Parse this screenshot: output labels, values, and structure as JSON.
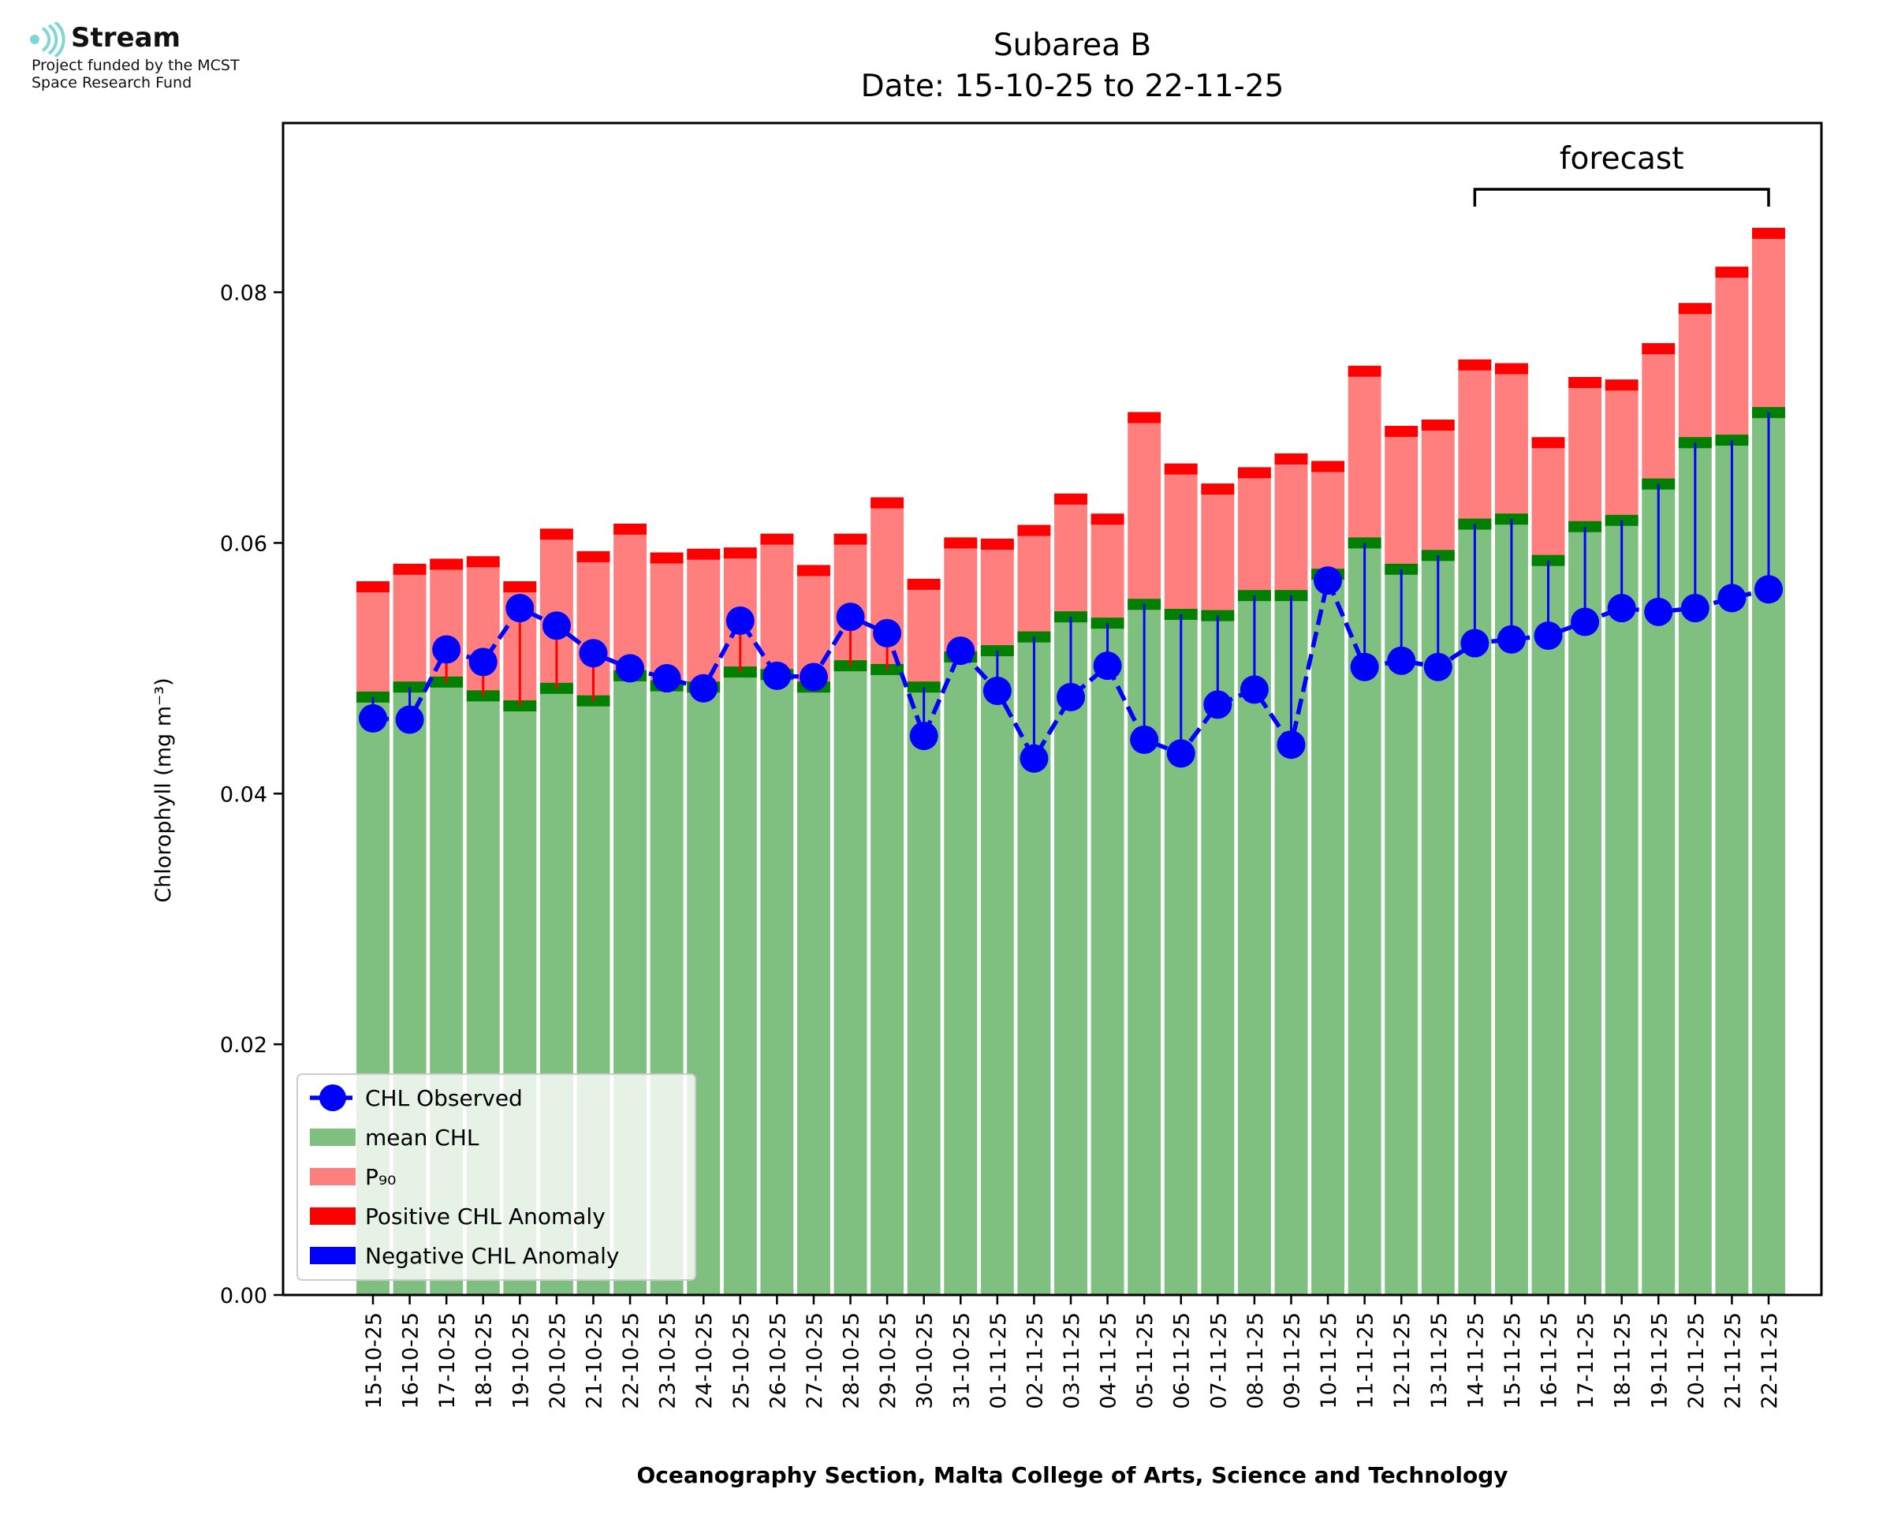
{
  "logo": {
    "brand": "Stream",
    "line1": "Project funded by the MCST",
    "line2": "Space Research Fund"
  },
  "chart_data": {
    "type": "bar",
    "title": "Subarea B",
    "subtitle": "Date: 15-10-25 to 22-11-25",
    "xlabel": "Oceanography Section, Malta College of Arts, Science and Technology",
    "ylabel": "Chlorophyll (mg m⁻³)",
    "ylim": [
      0,
      0.0935
    ],
    "yticks": [
      "0.00",
      "0.02",
      "0.04",
      "0.06",
      "0.08"
    ],
    "annotation": "forecast",
    "forecast_range": [
      "14-11-25",
      "22-11-25"
    ],
    "categories": [
      "15-10-25",
      "16-10-25",
      "17-10-25",
      "18-10-25",
      "19-10-25",
      "20-10-25",
      "21-10-25",
      "22-10-25",
      "23-10-25",
      "24-10-25",
      "25-10-25",
      "26-10-25",
      "27-10-25",
      "28-10-25",
      "29-10-25",
      "30-10-25",
      "31-10-25",
      "01-11-25",
      "02-11-25",
      "03-11-25",
      "04-11-25",
      "05-11-25",
      "06-11-25",
      "07-11-25",
      "08-11-25",
      "09-11-25",
      "10-11-25",
      "11-11-25",
      "12-11-25",
      "13-11-25",
      "14-11-25",
      "15-11-25",
      "16-11-25",
      "17-11-25",
      "18-11-25",
      "19-11-25",
      "20-11-25",
      "21-11-25",
      "22-11-25"
    ],
    "series": [
      {
        "name": "mean CHL",
        "color": "#7fbf7f",
        "values": [
          0.0477,
          0.0485,
          0.0489,
          0.0478,
          0.047,
          0.0484,
          0.0474,
          0.0494,
          0.0486,
          0.0485,
          0.0497,
          0.0495,
          0.0485,
          0.0502,
          0.0499,
          0.0485,
          0.0509,
          0.0514,
          0.0525,
          0.0541,
          0.0536,
          0.0551,
          0.0543,
          0.0542,
          0.0558,
          0.0558,
          0.0575,
          0.06,
          0.0579,
          0.059,
          0.0615,
          0.0619,
          0.0586,
          0.0613,
          0.0618,
          0.0647,
          0.068,
          0.0682,
          0.0704
        ]
      },
      {
        "name": "P₉₀",
        "color": "#ff7f7f",
        "values": [
          0.0565,
          0.0579,
          0.0583,
          0.0585,
          0.0565,
          0.0607,
          0.0589,
          0.0611,
          0.0588,
          0.0591,
          0.0592,
          0.0603,
          0.0578,
          0.0603,
          0.0632,
          0.0567,
          0.06,
          0.0599,
          0.061,
          0.0635,
          0.0619,
          0.07,
          0.0659,
          0.0643,
          0.0656,
          0.0667,
          0.0661,
          0.0737,
          0.0689,
          0.0694,
          0.0742,
          0.0739,
          0.068,
          0.0728,
          0.0726,
          0.0755,
          0.0787,
          0.0816,
          0.0847
        ]
      },
      {
        "name": "CHL Observed",
        "color": "#0000ff",
        "values": [
          0.046,
          0.0459,
          0.0515,
          0.0505,
          0.0548,
          0.0534,
          0.0512,
          0.05,
          0.0492,
          0.0484,
          0.0538,
          0.0494,
          0.0493,
          0.0541,
          0.0528,
          0.0446,
          0.0514,
          0.0482,
          0.0428,
          0.0477,
          0.0502,
          0.0443,
          0.0432,
          0.0471,
          0.0483,
          0.0439,
          0.057,
          0.0501,
          0.0506,
          0.0501,
          0.052,
          0.0523,
          0.0526,
          0.0537,
          0.0548,
          0.0545,
          0.0548,
          0.0556,
          0.0563
        ]
      }
    ],
    "legend": {
      "position": "lower-left",
      "entries": [
        "CHL Observed",
        "mean CHL",
        "P₉₀",
        "Positive CHL Anomaly",
        "Negative CHL Anomaly"
      ],
      "colors": [
        "#0000ff",
        "#7fbf7f",
        "#ff7f7f",
        "#ff0000",
        "#0000ff"
      ]
    },
    "colors": {
      "mean_cap": "#007f00",
      "p90_cap": "#ff0000",
      "positive_anomaly": "#ff0000",
      "negative_anomaly": "#0000ff"
    },
    "grid": false
  }
}
